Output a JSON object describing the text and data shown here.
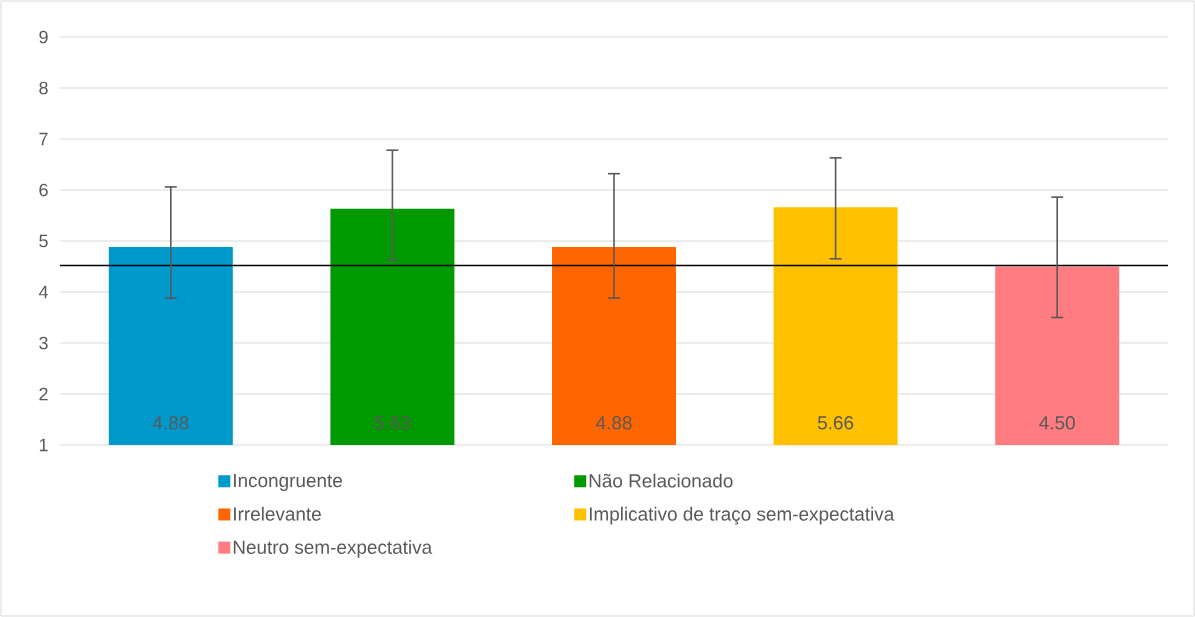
{
  "chart_data": {
    "type": "bar",
    "categories": [
      null,
      null,
      null,
      null,
      null
    ],
    "series": [
      {
        "name": "Incongruente",
        "color": "#0099cc",
        "values": [
          4.88,
          null,
          null,
          null,
          null
        ],
        "value_labels": [
          "4.88",
          null,
          null,
          null,
          null
        ],
        "errors": [
          [
            3.88,
            6.06
          ],
          null,
          null,
          null,
          null
        ]
      },
      {
        "name": "Não Relacionado",
        "color": "#009900",
        "values": [
          null,
          5.63,
          null,
          null,
          null
        ],
        "value_labels": [
          null,
          "5.63",
          null,
          null,
          null
        ],
        "errors": [
          null,
          [
            4.63,
            6.78
          ],
          null,
          null,
          null
        ]
      },
      {
        "name": "Irrelevante",
        "color": "#ff6600",
        "values": [
          null,
          null,
          4.88,
          null,
          null
        ],
        "value_labels": [
          null,
          null,
          "4.88",
          null,
          null
        ],
        "errors": [
          null,
          null,
          [
            3.88,
            6.32
          ],
          null,
          null
        ]
      },
      {
        "name": "Implicativo de traço sem-expectativa",
        "color": "#ffc000",
        "values": [
          null,
          null,
          null,
          5.66,
          null
        ],
        "value_labels": [
          null,
          null,
          null,
          "5.66",
          null
        ],
        "errors": [
          null,
          null,
          null,
          [
            4.65,
            6.63
          ],
          null
        ]
      },
      {
        "name": "Neutro sem-expectativa",
        "color": "#ff7c80",
        "values": [
          null,
          null,
          null,
          null,
          4.5
        ],
        "value_labels": [
          null,
          null,
          null,
          null,
          "4.50"
        ],
        "errors": [
          null,
          null,
          null,
          null,
          [
            3.5,
            5.86
          ]
        ]
      }
    ],
    "ylim": [
      1,
      9
    ],
    "yticks": [
      1,
      2,
      3,
      4,
      5,
      6,
      7,
      8,
      9
    ],
    "grid": "y",
    "legend": "bottom",
    "ref_lines": [
      {
        "axis": "y",
        "value": 4.52,
        "color": "#000000"
      }
    ]
  }
}
